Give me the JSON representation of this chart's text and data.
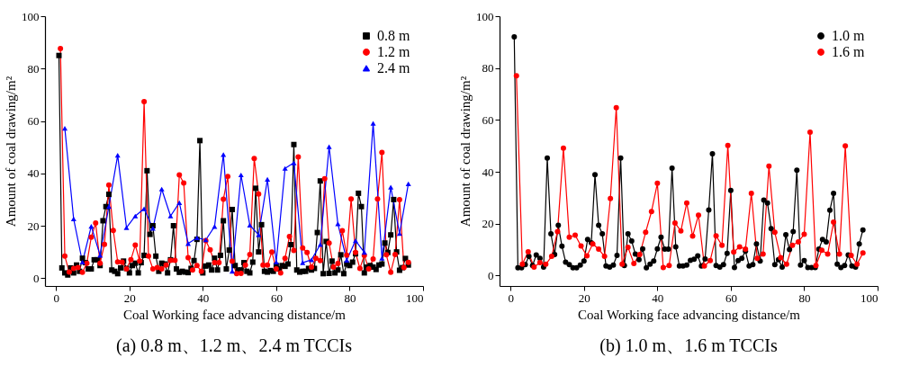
{
  "chart_data": [
    {
      "type": "line",
      "title": "(a) 0.8 m、1.2 m、2.4 m TCCIs",
      "xlabel": "Coal Working face advancing distance/m",
      "ylabel": "Amount of coal drawing/m²",
      "xlim": [
        -3,
        100
      ],
      "ylim": [
        -3,
        100
      ],
      "xticks": [
        0,
        20,
        40,
        60,
        80,
        100
      ],
      "yticks": [
        0,
        20,
        40,
        60,
        80,
        100
      ],
      "legend": "top right",
      "marker": "circle",
      "line_style": "solid",
      "series": [
        {
          "name": "0.8 m",
          "color": "#000000",
          "marker": "square",
          "x": [
            0.8,
            1.6,
            2.4,
            3.2,
            4,
            4.8,
            5.6,
            6.4,
            7.2,
            8,
            8.8,
            9.6,
            10.4,
            11.2,
            12,
            12.8,
            13.6,
            14.4,
            15.2,
            16,
            16.8,
            17.6,
            18.4,
            19.2,
            20,
            20.8,
            21.6,
            22.4,
            23.2,
            24,
            24.8,
            25.6,
            26.4,
            27.2,
            28,
            28.8,
            29.6,
            30.4,
            31.2,
            32,
            32.8,
            33.6,
            34.4,
            35.2,
            36,
            36.8,
            37.6,
            38.4,
            39.2,
            40,
            40.8,
            41.6,
            42.4,
            43.2,
            44,
            44.8,
            45.6,
            46.4,
            47.2,
            48,
            48.8,
            49.6,
            50.4,
            51.2,
            52,
            52.8,
            53.6,
            54.4,
            55.2,
            56,
            56.8,
            57.6,
            58.4,
            59.2,
            60,
            60.8,
            61.6,
            62.4,
            63.2,
            64,
            64.8,
            65.6,
            66.4,
            67.2,
            68,
            68.8,
            69.6,
            70.4,
            71.2,
            72,
            72.8,
            73.6,
            74.4,
            75.2,
            76,
            76.8,
            77.6,
            78.4,
            79.2,
            80,
            80.8,
            81.6,
            82.4,
            83.2,
            84,
            84.8,
            85.6,
            86.4,
            87.2,
            88,
            88.8,
            89.6,
            90.4,
            91.2,
            92,
            92.8,
            93.6,
            94.4,
            95.2,
            96
          ],
          "values": [
            85,
            3.9,
            2,
            1.2,
            3.9,
            2,
            5,
            2.6,
            7.6,
            5.9,
            3.5,
            3.5,
            7,
            7,
            4.8,
            21.9,
            27.3,
            32,
            3.1,
            2.6,
            1.7,
            3.9,
            6.5,
            3.7,
            2,
            4.8,
            5.7,
            2,
            5.9,
            8.7,
            41,
            16.7,
            20,
            8.4,
            2.6,
            5.7,
            5.4,
            2,
            7,
            20,
            3.5,
            2.2,
            2.6,
            2.3,
            2.1,
            3.7,
            6.7,
            14.8,
            52.5,
            2,
            4.6,
            5,
            3.1,
            7.6,
            3.1,
            8.7,
            21.9,
            3.5,
            10.7,
            26.2,
            4.8,
            3.1,
            3.1,
            5.9,
            2.6,
            2,
            6.1,
            34.3,
            10,
            20.4,
            2.6,
            2.3,
            2.9,
            2.6,
            4.8,
            3.5,
            4.8,
            4.5,
            5.4,
            12.8,
            51,
            3.1,
            2.3,
            2.6,
            2.6,
            3.7,
            3.1,
            3.7,
            17.4,
            37.1,
            1.7,
            14,
            1.8,
            6.5,
            2,
            3.1,
            8.9,
            1.7,
            5.4,
            4.8,
            6.1,
            9.3,
            32.4,
            27.3,
            2,
            4.2,
            4.8,
            4.2,
            3.3,
            5,
            5.4,
            13.4,
            9.8,
            16.5,
            30,
            10,
            3,
            4,
            7.5,
            5
          ]
        },
        {
          "name": "1.2 m",
          "color": "#ff0000",
          "marker": "circle",
          "x": [
            1.2,
            2.4,
            3.6,
            4.8,
            6,
            7.2,
            8.4,
            9.6,
            10.8,
            12,
            13.2,
            14.4,
            15.6,
            16.8,
            18,
            19.2,
            20.4,
            21.6,
            22.8,
            24,
            25.2,
            26.4,
            27.6,
            28.8,
            30,
            31.2,
            32.4,
            33.6,
            34.8,
            36,
            37.2,
            38.4,
            39.6,
            40.8,
            42,
            43.2,
            44.4,
            45.6,
            46.8,
            48,
            49.2,
            50.4,
            51.6,
            52.8,
            54,
            55.2,
            56.4,
            57.6,
            58.8,
            60,
            61.2,
            62.4,
            63.6,
            64.8,
            66,
            67.2,
            68.4,
            69.6,
            70.8,
            72,
            73.2,
            74.4,
            75.6,
            76.8,
            78,
            79.2,
            80.4,
            81.6,
            82.8,
            84,
            85.2,
            86.4,
            87.6,
            88.8,
            90,
            91.2,
            92.4,
            93.6,
            94.8,
            96
          ],
          "values": [
            87.6,
            8.4,
            2.3,
            3.7,
            4,
            2.2,
            5.7,
            15.6,
            21,
            5.7,
            12.9,
            35.5,
            18.2,
            6.2,
            6.1,
            3.5,
            7,
            12.6,
            6.5,
            67.4,
            8.4,
            3.5,
            4,
            3.5,
            5,
            6.8,
            6.8,
            39.4,
            36.3,
            7.8,
            3.1,
            4.8,
            2.6,
            14.3,
            10.8,
            5.9,
            5.9,
            30.1,
            38.8,
            6.4,
            1.7,
            1.8,
            5,
            9,
            45.7,
            32.1,
            5,
            5,
            10,
            3.5,
            2,
            7.6,
            15.9,
            10.6,
            46.3,
            11.5,
            9.8,
            4.2,
            7.6,
            6.7,
            37.9,
            13.4,
            4.2,
            5.6,
            18.1,
            8.8,
            30.2,
            9.8,
            3.7,
            8.7,
            3.5,
            7.3,
            30.2,
            48,
            8.9,
            2.2,
            9,
            30,
            4,
            6
          ]
        },
        {
          "name": "2.4 m",
          "color": "#0000ff",
          "marker": "triangle",
          "x": [
            2.4,
            4.8,
            7.2,
            9.6,
            12,
            14.4,
            16.8,
            19.2,
            21.6,
            24,
            26.4,
            28.8,
            31.2,
            33.6,
            36,
            38.4,
            40.8,
            43.2,
            45.6,
            48,
            50.4,
            52.8,
            55.2,
            57.6,
            60,
            62.4,
            64.8,
            67.2,
            69.6,
            72,
            74.4,
            76.8,
            79.2,
            81.6,
            84,
            86.4,
            88.8,
            91.2,
            93.6,
            96
          ],
          "values": [
            57.2,
            22.6,
            6.1,
            19.8,
            8.7,
            27.3,
            46.9,
            19.3,
            23.7,
            26.5,
            19,
            34,
            23.7,
            28.8,
            13.2,
            15.4,
            14.6,
            19.7,
            47.2,
            2.6,
            39.4,
            20.2,
            16.5,
            37.7,
            6.1,
            41.9,
            44,
            5.9,
            7,
            12.8,
            50.2,
            20.7,
            6.8,
            14.3,
            9.8,
            59.1,
            7.6,
            34.7,
            17,
            36
          ]
        }
      ]
    },
    {
      "type": "line",
      "title": "(b) 1.0 m、1.6 m TCCIs",
      "xlabel": "Coal Working face advancing distance/m",
      "ylabel": "Amount of coal drawing/m²",
      "xlim": [
        -3,
        100
      ],
      "ylim": [
        -4,
        100
      ],
      "xticks": [
        0,
        20,
        40,
        60,
        80,
        100
      ],
      "yticks": [
        0,
        20,
        40,
        60,
        80,
        100
      ],
      "legend": "top right",
      "marker": "circle",
      "line_style": "solid",
      "series": [
        {
          "name": "1.0 m",
          "color": "#000000",
          "x": [
            1,
            2,
            3,
            4,
            5,
            6,
            7,
            8,
            9,
            10,
            11,
            12,
            13,
            14,
            15,
            16,
            17,
            18,
            19,
            20,
            21,
            22,
            23,
            24,
            25,
            26,
            27,
            28,
            29,
            30,
            31,
            32,
            33,
            34,
            35,
            36,
            37,
            38,
            39,
            40,
            41,
            42,
            43,
            44,
            45,
            46,
            47,
            48,
            49,
            50,
            51,
            52,
            53,
            54,
            55,
            56,
            57,
            58,
            59,
            60,
            61,
            62,
            63,
            64,
            65,
            66,
            67,
            68,
            69,
            70,
            71,
            72,
            73,
            74,
            75,
            76,
            77,
            78,
            79,
            80,
            81,
            82,
            83,
            84,
            85,
            86,
            87,
            88,
            89,
            90,
            91,
            92,
            93,
            94,
            95,
            96
          ],
          "values": [
            92,
            3,
            3,
            4.2,
            7.4,
            3.9,
            8,
            6.7,
            3.3,
            45.3,
            16.1,
            8.1,
            19.4,
            11.3,
            5.2,
            4.2,
            3,
            3,
            4.1,
            5.6,
            13.9,
            12.6,
            38.9,
            19.4,
            16.1,
            3.7,
            3.3,
            4.1,
            7.8,
            45.3,
            3.9,
            16.1,
            13.3,
            8.3,
            6.1,
            10.3,
            3,
            4.4,
            5.6,
            10.3,
            14.8,
            10.2,
            10.2,
            41.4,
            11.1,
            3.7,
            3.7,
            4.1,
            5.9,
            6.3,
            7.6,
            3.7,
            6.4,
            25.3,
            47,
            3.9,
            3.3,
            4.2,
            8.6,
            32.8,
            3.1,
            5.8,
            6.7,
            9.4,
            3.7,
            4.2,
            12.2,
            5.6,
            29.1,
            28,
            18.1,
            4.2,
            6.1,
            3.3,
            15.8,
            10,
            17,
            40.6,
            4.1,
            5.8,
            3.1,
            3.1,
            3.1,
            10.2,
            13.9,
            13,
            25.2,
            31.7,
            4.4,
            3.1,
            3.9,
            8,
            3.7,
            3.3,
            12.2,
            17.6
          ]
        },
        {
          "name": "1.6 m",
          "color": "#ff0000",
          "x": [
            1.6,
            3.2,
            4.8,
            6.4,
            8,
            9.6,
            11.2,
            12.8,
            14.4,
            16,
            17.6,
            19.2,
            20.8,
            22.4,
            24,
            25.6,
            27.2,
            28.8,
            30.4,
            32,
            33.6,
            35.2,
            36.8,
            38.4,
            40,
            41.6,
            43.2,
            44.8,
            46.4,
            48,
            49.6,
            51.2,
            52.8,
            54.4,
            56,
            57.6,
            59.2,
            60.8,
            62.4,
            64,
            65.6,
            67.2,
            68.8,
            70.4,
            72,
            73.6,
            75.2,
            76.8,
            78.4,
            80,
            81.6,
            83.2,
            84.8,
            86.4,
            88,
            89.6,
            91.2,
            92.8,
            94.4,
            96
          ],
          "values": [
            77,
            4.4,
            9.2,
            3.3,
            5,
            4.4,
            7.4,
            17,
            49.1,
            14.8,
            15.6,
            11.4,
            7.6,
            12.2,
            10.2,
            7.4,
            29.7,
            64.7,
            4.4,
            10.9,
            4.7,
            8.1,
            16.7,
            24.7,
            35.6,
            3.1,
            3.9,
            20.3,
            17.2,
            28,
            15.2,
            23.3,
            3.7,
            5.8,
            15.3,
            11.7,
            50.2,
            9.1,
            11.1,
            10.2,
            31.7,
            6.7,
            8.3,
            42.2,
            16.7,
            6.9,
            4.4,
            11.7,
            13,
            15.9,
            55.3,
            3.9,
            9.8,
            8.3,
            20.6,
            8.3,
            50,
            7.8,
            4.4,
            8.7
          ]
        }
      ]
    }
  ]
}
